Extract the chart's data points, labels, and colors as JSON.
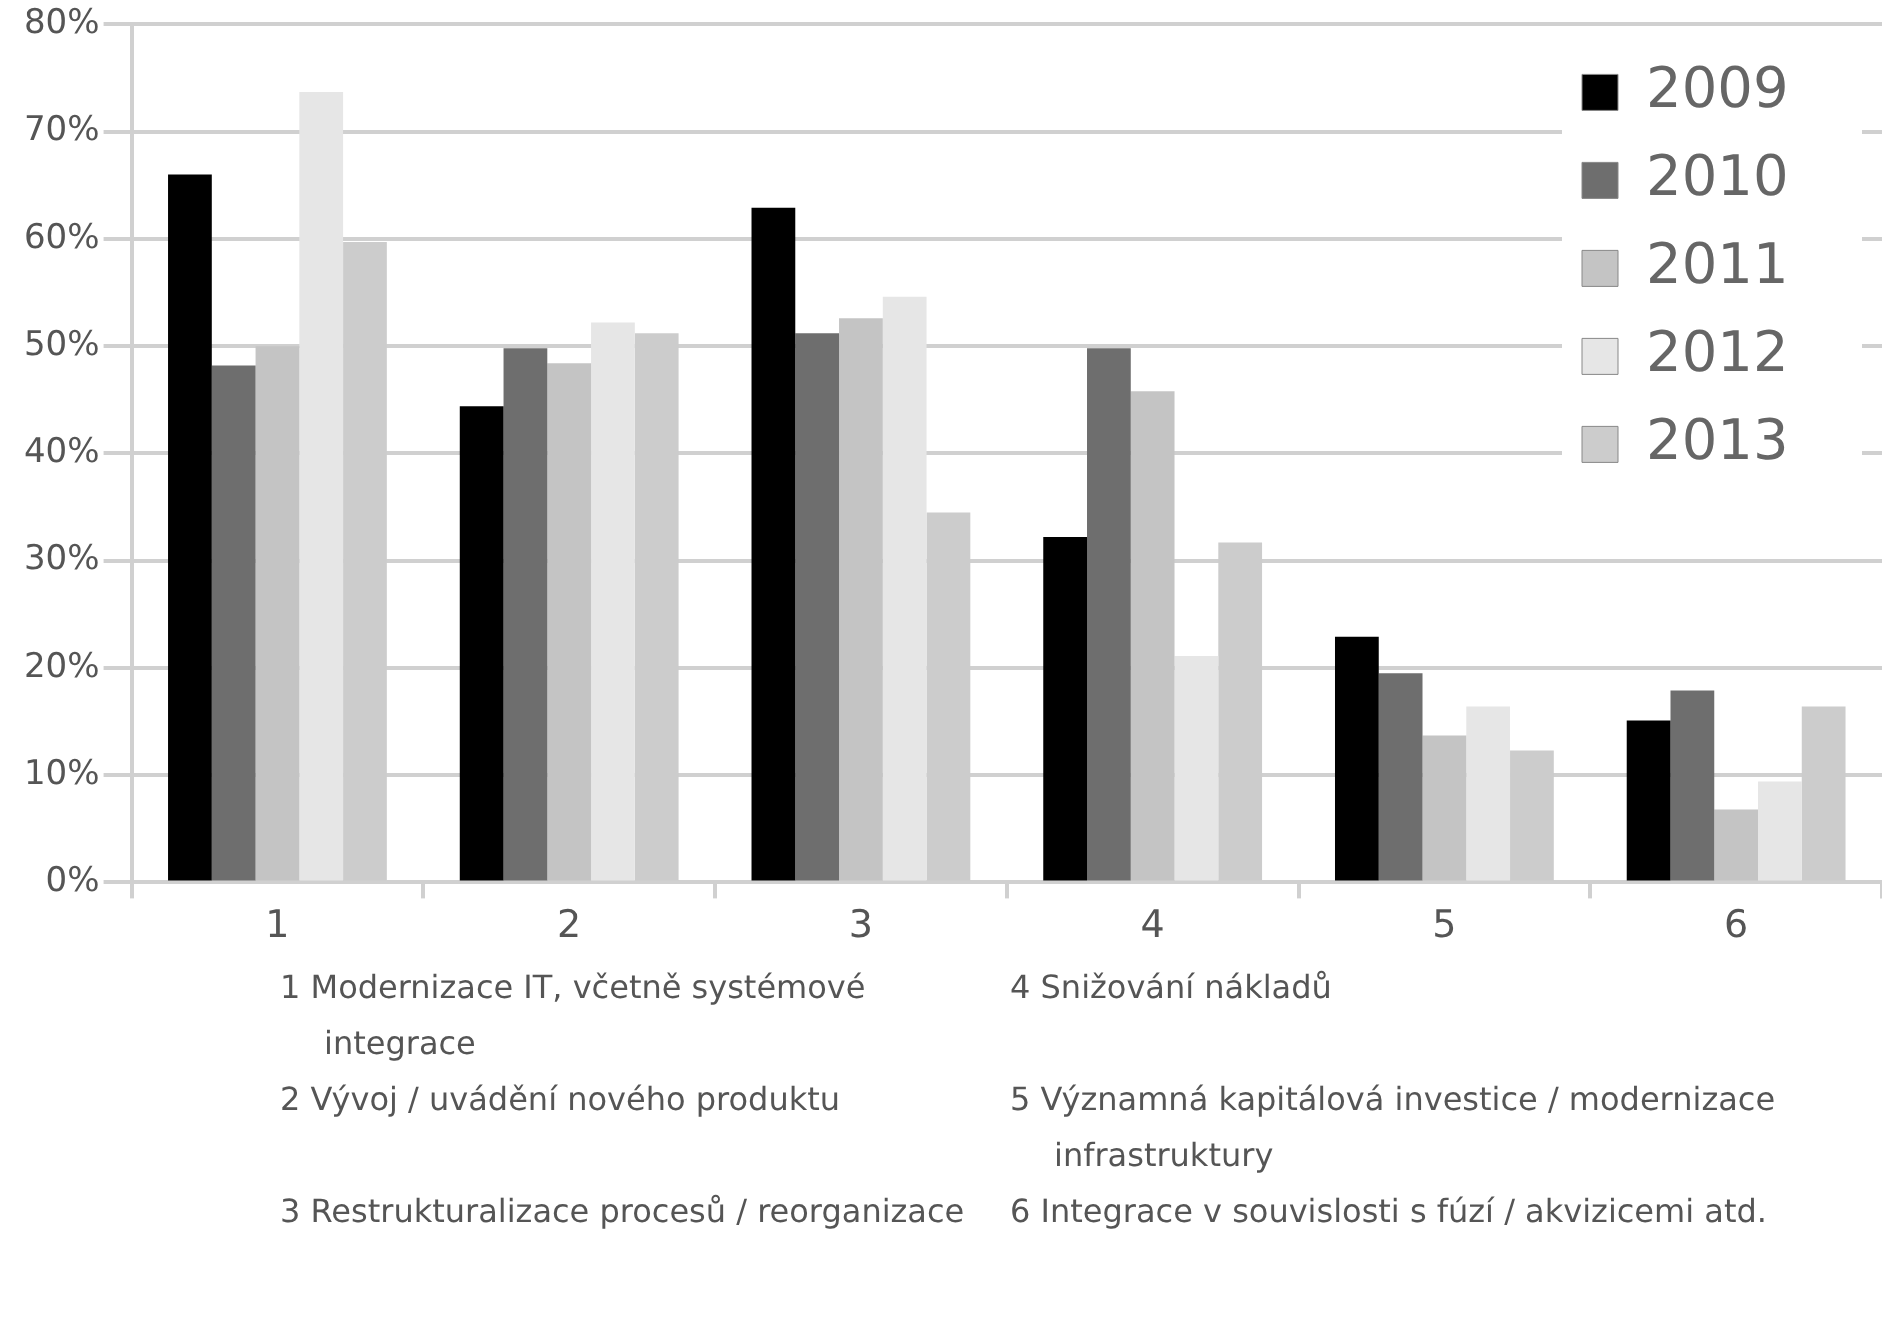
{
  "chart_data": {
    "type": "bar",
    "categories": [
      "1",
      "2",
      "3",
      "4",
      "5",
      "6"
    ],
    "series": [
      {
        "name": "2009",
        "color": "#000000",
        "values": [
          66.0,
          44.4,
          62.9,
          32.2,
          22.9,
          15.1
        ]
      },
      {
        "name": "2010",
        "color": "#6e6e6e",
        "values": [
          48.2,
          49.8,
          51.2,
          49.8,
          19.5,
          17.9
        ]
      },
      {
        "name": "2011",
        "color": "#c4c4c4",
        "values": [
          50.0,
          48.4,
          52.6,
          45.8,
          13.7,
          6.8
        ]
      },
      {
        "name": "2012",
        "color": "#e6e6e6",
        "values": [
          73.7,
          52.2,
          54.6,
          21.1,
          16.4,
          9.4
        ]
      },
      {
        "name": "2013",
        "color": "#cccccc",
        "values": [
          59.7,
          51.2,
          34.5,
          31.7,
          12.3,
          16.4
        ]
      }
    ],
    "ylim": [
      0,
      80
    ],
    "yticks": [
      {
        "value": 0,
        "label": "0%"
      },
      {
        "value": 10,
        "label": "10%"
      },
      {
        "value": 20,
        "label": "20%"
      },
      {
        "value": 30,
        "label": "30%"
      },
      {
        "value": 40,
        "label": "40%"
      },
      {
        "value": 50,
        "label": "50%"
      },
      {
        "value": 60,
        "label": "60%"
      },
      {
        "value": 70,
        "label": "70%"
      },
      {
        "value": 80,
        "label": "80%"
      }
    ],
    "grid": "y",
    "legend": "top right",
    "annotations": [
      "1 Modernizace IT, včetně systémové integrace",
      "2 Vývoj / uvádění nového produktu",
      "3 Restrukturalizace procesů / reorganizace",
      "4 Snižování nákladů",
      "5 Významná kapitálová investice / modernizace infrastruktury",
      "6 Integrace v souvislosti s fúzí / akvizicemi atd."
    ]
  }
}
